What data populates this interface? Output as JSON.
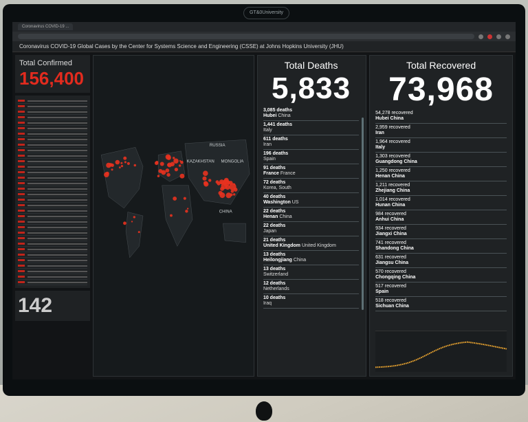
{
  "browser": {
    "tab_title": "Coronavirus COVID-19 ...",
    "page_title": "Coronavirus COVID-19 Global Cases by the Center for Systems Science and Engineering (CSSE) at Johns Hopkins University (JHU)"
  },
  "monitor_camera_label": "GT&0University",
  "confirmed": {
    "label": "Total Confirmed",
    "value": "156,400",
    "color": "#e32b1e"
  },
  "counter": {
    "value": "142"
  },
  "deaths": {
    "label": "Total Deaths",
    "value": "5,833",
    "items": [
      {
        "n": "3,085 deaths",
        "p": "Hubei",
        "r": "China"
      },
      {
        "n": "1,441 deaths",
        "p": "",
        "r": "Italy"
      },
      {
        "n": "611 deaths",
        "p": "",
        "r": "Iran"
      },
      {
        "n": "196 deaths",
        "p": "",
        "r": "Spain"
      },
      {
        "n": "91 deaths",
        "p": "France",
        "r": "France"
      },
      {
        "n": "72 deaths",
        "p": "",
        "r": "Korea, South"
      },
      {
        "n": "40 deaths",
        "p": "Washington",
        "r": "US"
      },
      {
        "n": "22 deaths",
        "p": "Henan",
        "r": "China"
      },
      {
        "n": "22 deaths",
        "p": "",
        "r": "Japan"
      },
      {
        "n": "21 deaths",
        "p": "United Kingdom",
        "r": "United Kingdom"
      },
      {
        "n": "13 deaths",
        "p": "Heilongjiang",
        "r": "China"
      },
      {
        "n": "13 deaths",
        "p": "",
        "r": "Switzerland"
      },
      {
        "n": "12 deaths",
        "p": "",
        "r": "Netherlands"
      },
      {
        "n": "10 deaths",
        "p": "",
        "r": "Iraq"
      }
    ]
  },
  "recovered": {
    "label": "Total Recovered",
    "value": "73,968",
    "items": [
      {
        "n": "54,278 recovered",
        "p": "Hubei China"
      },
      {
        "n": "2,959 recovered",
        "p": "Iran"
      },
      {
        "n": "1,964 recovered",
        "p": "Italy"
      },
      {
        "n": "1,303 recovered",
        "p": "Guangdong China"
      },
      {
        "n": "1,250 recovered",
        "p": "Henan China"
      },
      {
        "n": "1,211 recovered",
        "p": "Zhejiang China"
      },
      {
        "n": "1,014 recovered",
        "p": "Hunan China"
      },
      {
        "n": "984 recovered",
        "p": "Anhui China"
      },
      {
        "n": "934 recovered",
        "p": "Jiangxi China"
      },
      {
        "n": "741 recovered",
        "p": "Shandong China"
      },
      {
        "n": "631 recovered",
        "p": "Jiangsu China"
      },
      {
        "n": "570 recovered",
        "p": "Chongqing China"
      },
      {
        "n": "517 recovered",
        "p": "Spain"
      },
      {
        "n": "518 recovered",
        "p": "Sichuan China"
      }
    ]
  },
  "map": {
    "labels": {
      "russia": "RUSSIA",
      "kazakhstan": "KAZAKHSTAN",
      "mongolia": "MONGOLIA",
      "china": "CHINA"
    },
    "dot_color": "#e8321f"
  },
  "chart": {
    "line_color": "#f0a830"
  }
}
